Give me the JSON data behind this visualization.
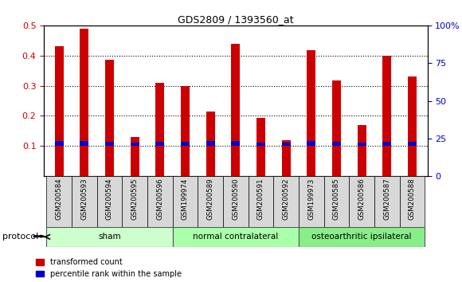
{
  "title": "GDS2809 / 1393560_at",
  "samples": [
    "GSM200584",
    "GSM200593",
    "GSM200594",
    "GSM200595",
    "GSM200596",
    "GSM199974",
    "GSM200589",
    "GSM200590",
    "GSM200591",
    "GSM200592",
    "GSM199973",
    "GSM200585",
    "GSM200586",
    "GSM200587",
    "GSM200588"
  ],
  "red_values": [
    0.43,
    0.49,
    0.385,
    0.13,
    0.31,
    0.3,
    0.215,
    0.44,
    0.193,
    0.12,
    0.418,
    0.318,
    0.17,
    0.4,
    0.33
  ],
  "blue_values": [
    0.018,
    0.018,
    0.015,
    0.012,
    0.015,
    0.015,
    0.018,
    0.018,
    0.012,
    0.012,
    0.018,
    0.015,
    0.012,
    0.015,
    0.015
  ],
  "blue_bottoms": [
    0.1,
    0.1,
    0.1,
    0.1,
    0.1,
    0.1,
    0.1,
    0.1,
    0.1,
    0.1,
    0.1,
    0.1,
    0.1,
    0.1,
    0.1
  ],
  "groups": [
    {
      "label": "sham",
      "start": 0,
      "end": 4,
      "color": "#ccffcc"
    },
    {
      "label": "normal contralateral",
      "start": 5,
      "end": 9,
      "color": "#aaffaa"
    },
    {
      "label": "osteoarthritic ipsilateral",
      "start": 10,
      "end": 14,
      "color": "#88ee88"
    }
  ],
  "ylim_left": [
    0.0,
    0.5
  ],
  "ylim_right": [
    0,
    100
  ],
  "yticks_left": [
    0.1,
    0.2,
    0.3,
    0.4,
    0.5
  ],
  "yticks_right": [
    0,
    25,
    50,
    75,
    100
  ],
  "ytick_labels_right": [
    "0",
    "25",
    "50",
    "75",
    "100%"
  ],
  "bar_width": 0.35,
  "red_color": "#cc0000",
  "blue_color": "#0000cc",
  "bg_color": "#ffffff",
  "grid_color": "#000000",
  "tick_label_color_left": "#cc0000",
  "tick_label_color_right": "#0000cc",
  "legend_red": "transformed count",
  "legend_blue": "percentile rank within the sample",
  "protocol_label": "protocol"
}
